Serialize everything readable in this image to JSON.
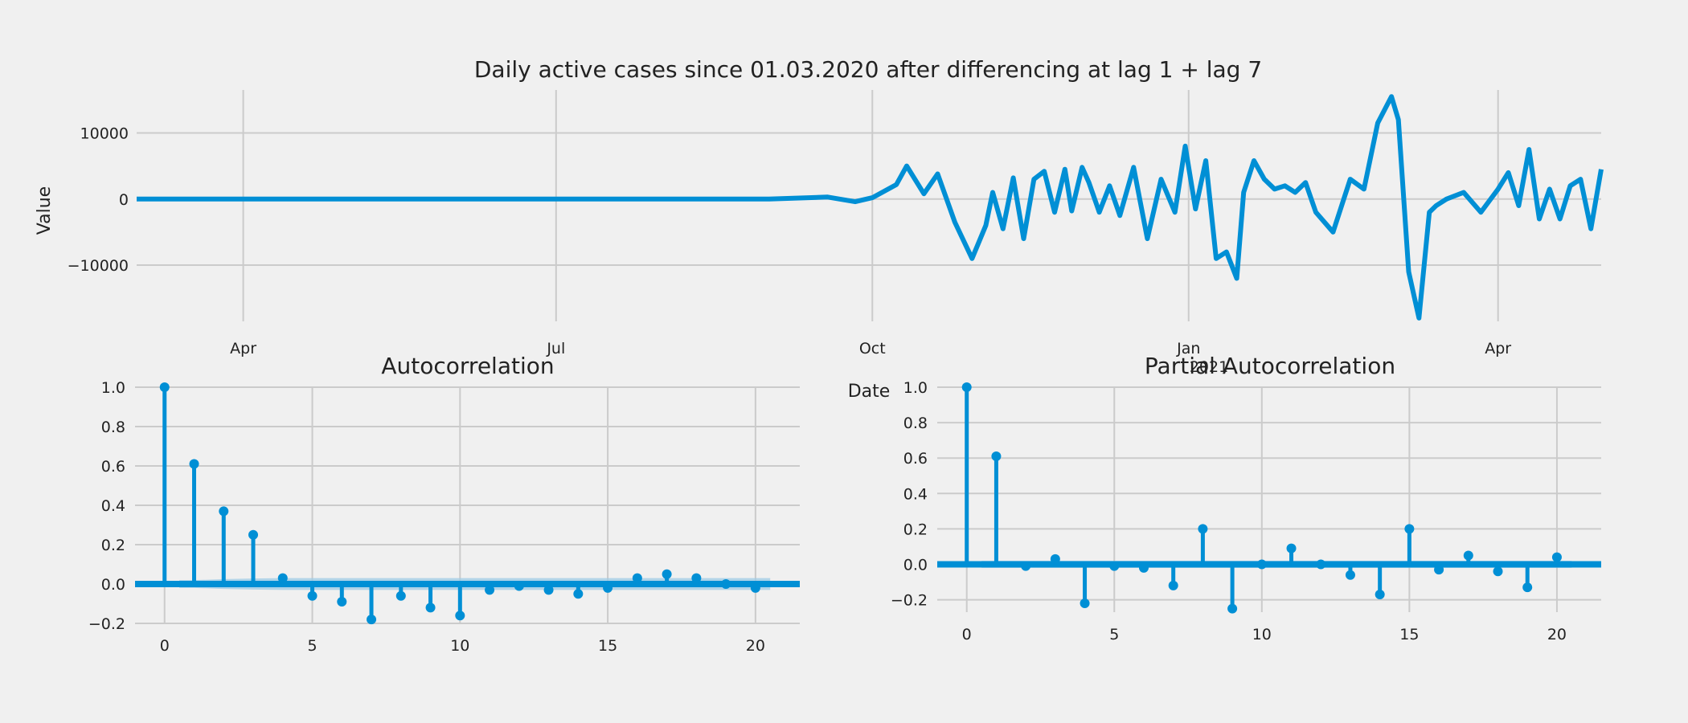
{
  "colors": {
    "background": "#f0f0f0",
    "grid": "#cbcbcb",
    "line": "#008fd5",
    "band": "#9ccbe6"
  },
  "chart_data": [
    {
      "type": "line",
      "title": "Daily active cases since 01.03.2020 after differencing at lag 1 + lag 7",
      "xlabel": "Date",
      "ylabel": "Value",
      "yticks": [
        "10000",
        "0",
        "−10000"
      ],
      "xticks": [
        "Apr",
        "Jul",
        "Oct",
        "Jan",
        "Apr"
      ],
      "xtick_sublabel": "2021",
      "x_range": [
        "2020-03-01",
        "2021-05-01"
      ],
      "ylim": [
        -18500,
        16500
      ],
      "grid": true,
      "series": [
        {
          "x": [
            "2020-03-01",
            "2020-04-01",
            "2020-05-01",
            "2020-06-01",
            "2020-07-01",
            "2020-08-01",
            "2020-09-01",
            "2020-09-18",
            "2020-09-26",
            "2020-10-01",
            "2020-10-08",
            "2020-10-11",
            "2020-10-16",
            "2020-10-20",
            "2020-10-25",
            "2020-10-30",
            "2020-11-03",
            "2020-11-05",
            "2020-11-08",
            "2020-11-11",
            "2020-11-14",
            "2020-11-17",
            "2020-11-20",
            "2020-11-23",
            "2020-11-26",
            "2020-11-28",
            "2020-12-01",
            "2020-12-03",
            "2020-12-06",
            "2020-12-09",
            "2020-12-12",
            "2020-12-16",
            "2020-12-20",
            "2020-12-24",
            "2020-12-28",
            "2020-12-31",
            "2021-01-03",
            "2021-01-06",
            "2021-01-09",
            "2021-01-12",
            "2021-01-15",
            "2021-01-17",
            "2021-01-20",
            "2021-01-23",
            "2021-01-26",
            "2021-01-29",
            "2021-02-01",
            "2021-02-04",
            "2021-02-07",
            "2021-02-12",
            "2021-02-17",
            "2021-02-21",
            "2021-02-25",
            "2021-03-01",
            "2021-03-03",
            "2021-03-06",
            "2021-03-09",
            "2021-03-12",
            "2021-03-14",
            "2021-03-17",
            "2021-03-22",
            "2021-03-27",
            "2021-04-01",
            "2021-04-04",
            "2021-04-07",
            "2021-04-10",
            "2021-04-13",
            "2021-04-16",
            "2021-04-19",
            "2021-04-22",
            "2021-04-25",
            "2021-04-28",
            "2021-05-01"
          ],
          "y": [
            0,
            0,
            0,
            0,
            0,
            0,
            0,
            300,
            -400,
            200,
            2200,
            5000,
            800,
            3800,
            -3500,
            -9000,
            -4000,
            1000,
            -4500,
            3200,
            -6000,
            3000,
            4200,
            -2000,
            4500,
            -1800,
            4800,
            2500,
            -2000,
            2000,
            -2500,
            4800,
            -6000,
            3000,
            -2000,
            8000,
            -1500,
            5800,
            -9000,
            -8000,
            -12000,
            1000,
            5800,
            3000,
            1500,
            2000,
            1000,
            2500,
            -2000,
            -5000,
            3000,
            1500,
            11500,
            15500,
            12000,
            -11000,
            -18000,
            -2000,
            -1000,
            0,
            1000,
            -2000,
            1500,
            4000,
            -1000,
            7500,
            -3000,
            1500,
            -3000,
            2000,
            3000,
            -4500,
            4500
          ]
        }
      ]
    },
    {
      "type": "stem",
      "title": "Autocorrelation",
      "xticks": [
        "0",
        "5",
        "10",
        "15",
        "20"
      ],
      "yticks": [
        "1.0",
        "0.8",
        "0.6",
        "0.4",
        "0.2",
        "0.0",
        "−0.2"
      ],
      "xlim": [
        -1,
        21.5
      ],
      "ylim": [
        -0.2,
        1.0
      ],
      "lags": [
        0,
        1,
        2,
        3,
        4,
        5,
        6,
        7,
        8,
        9,
        10,
        11,
        12,
        13,
        14,
        15,
        16,
        17,
        18,
        19,
        20
      ],
      "values": [
        1.0,
        0.61,
        0.37,
        0.25,
        0.03,
        -0.06,
        -0.09,
        -0.18,
        -0.06,
        -0.12,
        -0.16,
        -0.03,
        -0.01,
        -0.03,
        -0.05,
        -0.02,
        0.03,
        0.05,
        0.03,
        0.0,
        -0.02
      ],
      "confint": [
        0.0,
        0.02,
        0.025,
        0.028,
        0.03,
        0.03,
        0.03,
        0.03,
        0.03,
        0.03,
        0.03,
        0.03,
        0.03,
        0.03,
        0.03,
        0.03,
        0.03,
        0.03,
        0.03,
        0.03,
        0.03
      ]
    },
    {
      "type": "stem",
      "title": "Partial Autocorrelation",
      "xticks": [
        "0",
        "5",
        "10",
        "15",
        "20"
      ],
      "yticks": [
        "1.0",
        "0.8",
        "0.6",
        "0.4",
        "0.2",
        "0.0",
        "−0.2"
      ],
      "xlim": [
        -1,
        21.5
      ],
      "ylim": [
        -0.27,
        1.0
      ],
      "lags": [
        0,
        1,
        2,
        3,
        4,
        5,
        6,
        7,
        8,
        9,
        10,
        11,
        12,
        13,
        14,
        15,
        16,
        17,
        18,
        19,
        20
      ],
      "values": [
        1.0,
        0.61,
        -0.01,
        0.03,
        -0.22,
        -0.01,
        -0.02,
        -0.12,
        0.2,
        -0.25,
        0.0,
        0.09,
        0.0,
        -0.06,
        -0.17,
        0.2,
        -0.03,
        0.05,
        -0.04,
        -0.13,
        0.04
      ],
      "confint": [
        0.0,
        0.02,
        0.02,
        0.02,
        0.02,
        0.02,
        0.02,
        0.02,
        0.02,
        0.02,
        0.02,
        0.02,
        0.02,
        0.02,
        0.02,
        0.02,
        0.02,
        0.02,
        0.02,
        0.02,
        0.02
      ]
    }
  ]
}
